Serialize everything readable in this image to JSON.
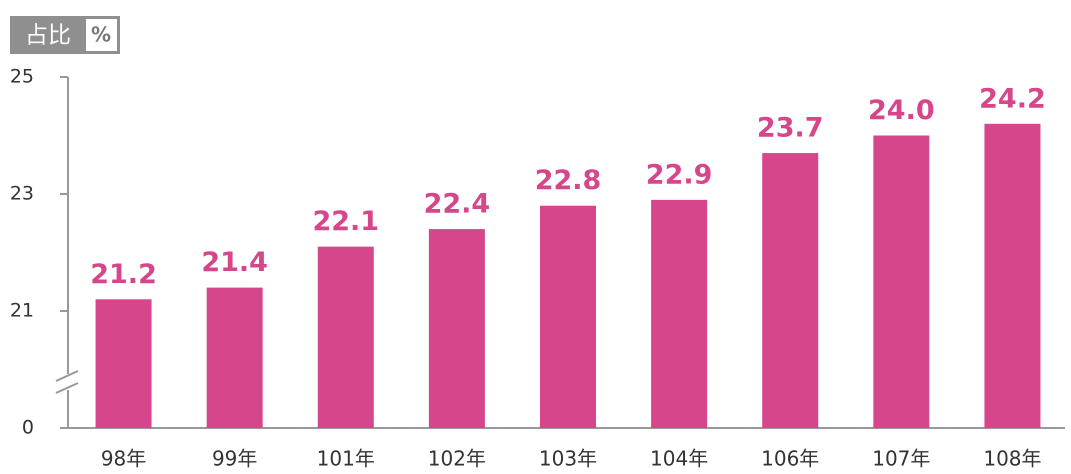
{
  "chart_data": {
    "type": "bar",
    "title": "占比",
    "unit": "%",
    "categories": [
      "98年",
      "99年",
      "101年",
      "102年",
      "103年",
      "104年",
      "106年",
      "107年",
      "108年"
    ],
    "values": [
      21.2,
      21.4,
      22.1,
      22.4,
      22.8,
      22.9,
      23.7,
      24.0,
      24.2
    ],
    "value_labels": [
      "21.2",
      "21.4",
      "22.1",
      "22.4",
      "22.8",
      "22.9",
      "23.7",
      "24.0",
      "24.2"
    ],
    "color": "#d6468a",
    "label_color": "#d6468a",
    "ylim": [
      0,
      25
    ],
    "yticks": [
      0,
      21,
      23,
      25
    ],
    "axis_break": true
  }
}
